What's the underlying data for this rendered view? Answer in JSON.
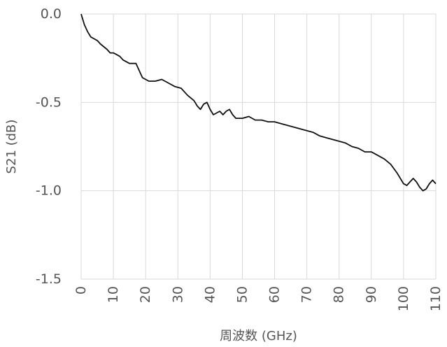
{
  "chart_data": {
    "type": "line",
    "title": "",
    "xlabel": "周波数 (GHz)",
    "ylabel": "S21 (dB)",
    "xlim": [
      0,
      110
    ],
    "ylim": [
      -1.5,
      0.0
    ],
    "grid": true,
    "x_ticks": [
      "0",
      "10",
      "20",
      "30",
      "40",
      "50",
      "60",
      "70",
      "80",
      "90",
      "100",
      "110"
    ],
    "y_ticks": [
      "0.0",
      "-0.5",
      "-1.0",
      "-1.5"
    ],
    "line_color": "#111111",
    "grid_color": "#d9d9d9",
    "series": [
      {
        "x": [
          0,
          1,
          2,
          3,
          4,
          5,
          6,
          8,
          9,
          10,
          12,
          13,
          15,
          17,
          18,
          19,
          20,
          21,
          23,
          25,
          27,
          29,
          31,
          33,
          35,
          36,
          37,
          38,
          39,
          40,
          41,
          42,
          43,
          44,
          45,
          46,
          47,
          48,
          50,
          52,
          54,
          56,
          58,
          60,
          62,
          64,
          66,
          68,
          70,
          72,
          74,
          76,
          78,
          80,
          82,
          84,
          86,
          88,
          90,
          92,
          94,
          96,
          98,
          100,
          101,
          102,
          103,
          104,
          105,
          106,
          107,
          108,
          109,
          110
        ],
        "y": [
          0.0,
          -0.06,
          -0.1,
          -0.13,
          -0.14,
          -0.15,
          -0.17,
          -0.2,
          -0.22,
          -0.22,
          -0.24,
          -0.26,
          -0.28,
          -0.28,
          -0.32,
          -0.36,
          -0.37,
          -0.38,
          -0.38,
          -0.37,
          -0.39,
          -0.41,
          -0.42,
          -0.46,
          -0.49,
          -0.52,
          -0.54,
          -0.51,
          -0.5,
          -0.54,
          -0.57,
          -0.56,
          -0.55,
          -0.57,
          -0.55,
          -0.54,
          -0.57,
          -0.59,
          -0.59,
          -0.58,
          -0.6,
          -0.6,
          -0.61,
          -0.61,
          -0.62,
          -0.63,
          -0.64,
          -0.65,
          -0.66,
          -0.67,
          -0.69,
          -0.7,
          -0.71,
          -0.72,
          -0.73,
          -0.75,
          -0.76,
          -0.78,
          -0.78,
          -0.8,
          -0.82,
          -0.85,
          -0.9,
          -0.96,
          -0.97,
          -0.95,
          -0.93,
          -0.95,
          -0.98,
          -1.0,
          -0.99,
          -0.96,
          -0.94,
          -0.96
        ]
      }
    ]
  }
}
